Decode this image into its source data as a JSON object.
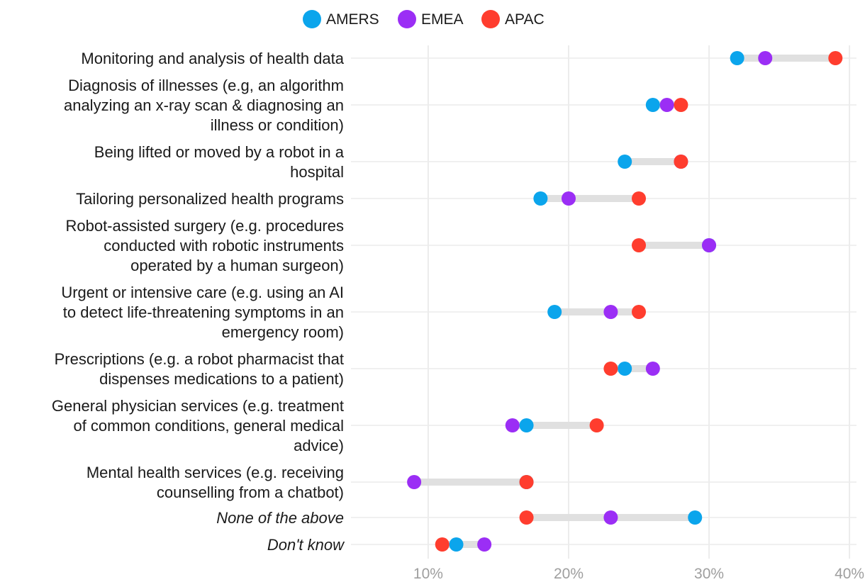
{
  "chart_data": {
    "type": "dumbbell",
    "title": "",
    "xlabel": "",
    "ylabel": "",
    "xlim": [
      4.5,
      40.5
    ],
    "x_ticks": [
      {
        "value": 10,
        "label": "10%"
      },
      {
        "value": 20,
        "label": "20%"
      },
      {
        "value": 30,
        "label": "30%"
      },
      {
        "value": 40,
        "label": "40%"
      }
    ],
    "legend_position": "top",
    "series": [
      {
        "key": "amers",
        "name": "AMERS",
        "color": "#0ba5ec"
      },
      {
        "key": "emea",
        "name": "EMEA",
        "color": "#9b2ef5"
      },
      {
        "key": "apac",
        "name": "APAC",
        "color": "#ff3d2e"
      }
    ],
    "categories": [
      {
        "lines": [
          "Monitoring and analysis of health data"
        ],
        "italic": false,
        "values": {
          "amers": 32,
          "emea": 34,
          "apac": 39
        }
      },
      {
        "lines": [
          "Diagnosis of illnesses (e.g, an algorithm",
          "analyzing an x-ray scan & diagnosing an",
          "illness or condition)"
        ],
        "italic": false,
        "values": {
          "amers": 26,
          "emea": 27,
          "apac": 28
        }
      },
      {
        "lines": [
          "Being lifted or moved by a robot in a",
          "hospital"
        ],
        "italic": false,
        "values": {
          "amers": 24,
          "emea": 28,
          "apac": 28
        }
      },
      {
        "lines": [
          "Tailoring personalized health programs"
        ],
        "italic": false,
        "values": {
          "amers": 18,
          "emea": 20,
          "apac": 25
        }
      },
      {
        "lines": [
          "Robot-assisted surgery (e.g. procedures",
          "conducted with robotic instruments",
          "operated by a human surgeon)"
        ],
        "italic": false,
        "values": {
          "amers": 30,
          "emea": 30,
          "apac": 25
        }
      },
      {
        "lines": [
          "Urgent or intensive care (e.g. using an AI",
          "to detect life-threatening symptoms in an",
          "emergency room)"
        ],
        "italic": false,
        "values": {
          "amers": 19,
          "emea": 23,
          "apac": 25
        }
      },
      {
        "lines": [
          "Prescriptions (e.g. a robot pharmacist that",
          "dispenses medications to a patient)"
        ],
        "italic": false,
        "values": {
          "amers": 24,
          "emea": 26,
          "apac": 23
        }
      },
      {
        "lines": [
          "General physician services (e.g. treatment",
          "of common conditions, general medical",
          "advice)"
        ],
        "italic": false,
        "values": {
          "amers": 17,
          "emea": 16,
          "apac": 22
        }
      },
      {
        "lines": [
          "Mental health services (e.g. receiving",
          "counselling from a chatbot)"
        ],
        "italic": false,
        "values": {
          "amers": 17,
          "emea": 9,
          "apac": 17
        }
      },
      {
        "lines": [
          "None of the above"
        ],
        "italic": true,
        "values": {
          "amers": 29,
          "emea": 23,
          "apac": 17
        }
      },
      {
        "lines": [
          "Don't know"
        ],
        "italic": true,
        "values": {
          "amers": 12,
          "emea": 14,
          "apac": 11
        }
      }
    ]
  }
}
